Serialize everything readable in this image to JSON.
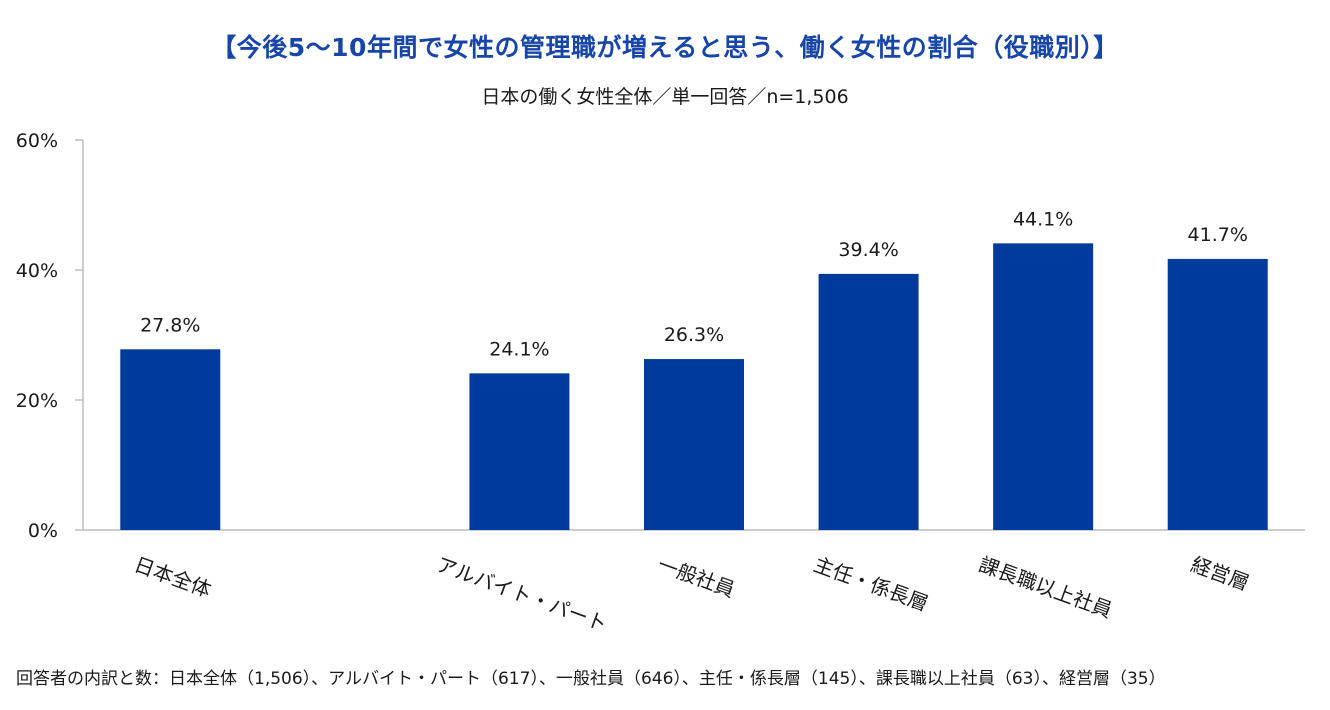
{
  "chart_data": {
    "type": "bar",
    "title": "【今後5〜10年間で女性の管理職が増えると思う、働く女性の割合（役職別）】",
    "subtitle": "日本の働く女性全体／単一回答／n=1,506",
    "categories": [
      "日本全体",
      "",
      "アルバイト・パート",
      "一般社員",
      "主任・係長層",
      "課長職以上社員",
      "経営層"
    ],
    "values": [
      27.8,
      null,
      24.1,
      26.3,
      39.4,
      44.1,
      41.7
    ],
    "data_labels": [
      "27.8%",
      "",
      "24.1%",
      "26.3%",
      "39.4%",
      "44.1%",
      "41.7%"
    ],
    "y_ticks": [
      0,
      20,
      40,
      60
    ],
    "y_tick_labels": [
      "0%",
      "20%",
      "40%",
      "60%"
    ],
    "ylim": [
      0,
      60
    ],
    "xlabel": "",
    "ylabel": "",
    "bar_color": "#003a9b",
    "footnote": "回答者の内訳と数：日本全体（1,506）、アルバイト・パート（617）、一般社員（646）、主任・係長層（145）、課長職以上社員（63）、経営層（35）"
  }
}
